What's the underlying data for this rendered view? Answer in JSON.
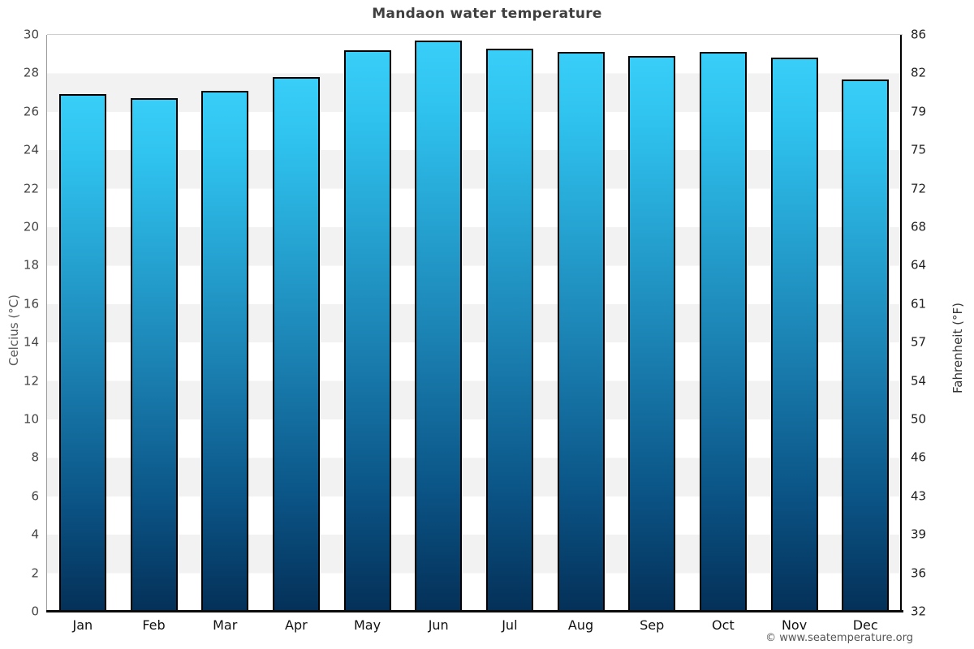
{
  "page": {
    "watermark": "© www.seatemperature.org"
  },
  "chart_data": {
    "type": "bar",
    "title": "Mandaon water temperature",
    "categories": [
      "Jan",
      "Feb",
      "Mar",
      "Apr",
      "May",
      "Jun",
      "Jul",
      "Aug",
      "Sep",
      "Oct",
      "Nov",
      "Dec"
    ],
    "series": [
      {
        "name": "Water temperature (°C)",
        "values": [
          26.9,
          26.7,
          27.1,
          27.8,
          29.2,
          29.7,
          29.3,
          29.1,
          28.9,
          29.1,
          28.8,
          27.7
        ]
      }
    ],
    "ylabel_left": "Celcius (°C)",
    "ylabel_right": "Fahrenheit (°F)",
    "ylim": [
      0,
      30
    ],
    "ytick_step": 2,
    "yticks_left": [
      "30",
      "28",
      "26",
      "24",
      "22",
      "20",
      "18",
      "16",
      "14",
      "12",
      "10",
      "8",
      "6",
      "4",
      "2",
      "0"
    ],
    "yticks_right": [
      "86",
      "82",
      "79",
      "75",
      "72",
      "68",
      "64",
      "61",
      "57",
      "54",
      "50",
      "46",
      "43",
      "39",
      "36",
      "32"
    ],
    "grid": "alternating horizontal bands, no vertical gridlines",
    "legend_position": "none",
    "colors": {
      "bar_gradient_top": "#38cef8",
      "bar_gradient_mid": "#1c85b6",
      "bar_gradient_bottom": "#043058",
      "bar_border": "#000000",
      "band_alt": "#f2f2f2",
      "band_main": "#ffffff",
      "title_color": "#3f3f3f",
      "axis_line": "#000000"
    }
  }
}
